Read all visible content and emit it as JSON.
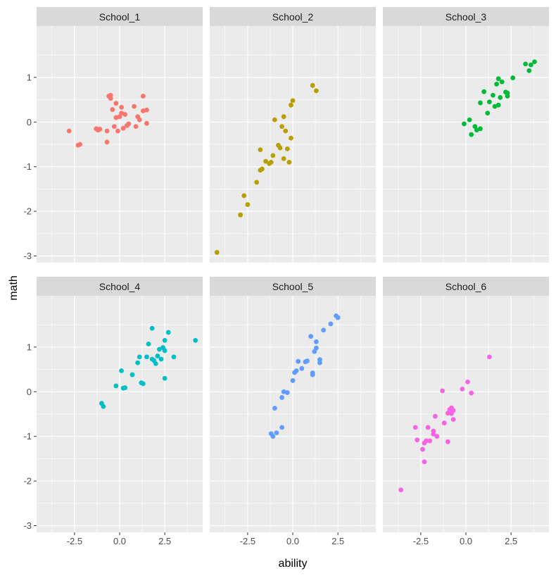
{
  "chart_data": {
    "type": "scatter",
    "facet_layout": "2x3",
    "xlabel": "ability",
    "ylabel": "math",
    "xlim": [
      -4.6,
      4.6
    ],
    "ylim": [
      -3.15,
      2.15
    ],
    "x_ticks": [
      -2.5,
      0,
      2.5
    ],
    "x_tick_labels": [
      "-2.5",
      "0.0",
      "2.5"
    ],
    "y_ticks": [
      -3,
      -2,
      -1,
      0,
      1
    ],
    "y_tick_labels": [
      "-3",
      "-2",
      "-1",
      "0",
      "1"
    ],
    "grid": true,
    "panel_background": "#ebebeb",
    "strip_background": "#d9d9d9",
    "grid_color": "#ffffff",
    "panels": [
      {
        "name": "School_1",
        "color": "#f8766d",
        "points": [
          [
            -2.8,
            -0.2
          ],
          [
            -2.3,
            -0.52
          ],
          [
            -2.2,
            -0.5
          ],
          [
            -1.3,
            -0.15
          ],
          [
            -1.2,
            -0.18
          ],
          [
            -1.1,
            -0.16
          ],
          [
            -0.7,
            -0.45
          ],
          [
            -0.7,
            -0.2
          ],
          [
            -0.6,
            0.58
          ],
          [
            -0.5,
            0.6
          ],
          [
            -0.5,
            0.53
          ],
          [
            -0.4,
            0.28
          ],
          [
            -0.3,
            -0.1
          ],
          [
            -0.2,
            0.1
          ],
          [
            -0.2,
            0.42
          ],
          [
            -0.1,
            -0.2
          ],
          [
            0.0,
            0.12
          ],
          [
            0.1,
            0.2
          ],
          [
            0.1,
            0.33
          ],
          [
            0.2,
            -0.14
          ],
          [
            0.3,
            0.17
          ],
          [
            0.4,
            -0.08
          ],
          [
            0.5,
            -0.04
          ],
          [
            0.8,
            0.35
          ],
          [
            0.9,
            -0.1
          ],
          [
            1.0,
            0.12
          ],
          [
            1.1,
            0.05
          ],
          [
            1.3,
            0.58
          ],
          [
            1.3,
            0.25
          ],
          [
            1.5,
            0.27
          ],
          [
            1.5,
            -0.03
          ]
        ]
      },
      {
        "name": "School_2",
        "color": "#b79f00",
        "points": [
          [
            -4.2,
            -2.92
          ],
          [
            -2.9,
            -2.08
          ],
          [
            -2.7,
            -1.65
          ],
          [
            -2.5,
            -1.85
          ],
          [
            -2.0,
            -1.35
          ],
          [
            -1.8,
            -1.08
          ],
          [
            -1.8,
            -0.62
          ],
          [
            -1.7,
            -1.05
          ],
          [
            -1.5,
            -0.88
          ],
          [
            -1.3,
            -0.93
          ],
          [
            -1.2,
            -0.9
          ],
          [
            -1.1,
            -0.75
          ],
          [
            -1.0,
            0.05
          ],
          [
            -0.8,
            -0.52
          ],
          [
            -0.7,
            -0.58
          ],
          [
            -0.6,
            -0.1
          ],
          [
            -0.5,
            0.12
          ],
          [
            -0.5,
            -0.82
          ],
          [
            -0.4,
            -0.2
          ],
          [
            -0.3,
            -0.6
          ],
          [
            -0.2,
            -0.9
          ],
          [
            -0.1,
            0.38
          ],
          [
            0.0,
            0.48
          ],
          [
            -0.1,
            -0.36
          ],
          [
            1.1,
            0.82
          ],
          [
            1.3,
            0.7
          ]
        ]
      },
      {
        "name": "School_3",
        "color": "#00ba38",
        "points": [
          [
            -0.1,
            -0.04
          ],
          [
            0.2,
            0.05
          ],
          [
            0.3,
            -0.28
          ],
          [
            0.5,
            -0.1
          ],
          [
            0.6,
            -0.18
          ],
          [
            0.8,
            -0.15
          ],
          [
            0.8,
            0.43
          ],
          [
            1.0,
            0.68
          ],
          [
            1.2,
            0.2
          ],
          [
            1.3,
            0.45
          ],
          [
            1.5,
            0.6
          ],
          [
            1.6,
            0.35
          ],
          [
            1.7,
            0.85
          ],
          [
            1.8,
            0.38
          ],
          [
            1.8,
            0.97
          ],
          [
            1.9,
            0.55
          ],
          [
            2.0,
            0.9
          ],
          [
            2.2,
            0.67
          ],
          [
            2.3,
            0.58
          ],
          [
            2.3,
            0.65
          ],
          [
            2.6,
            0.99
          ],
          [
            3.3,
            1.3
          ],
          [
            3.5,
            1.15
          ],
          [
            3.6,
            1.28
          ],
          [
            3.8,
            1.35
          ]
        ]
      },
      {
        "name": "School_4",
        "color": "#00bfc4",
        "points": [
          [
            -1.0,
            -0.26
          ],
          [
            -0.9,
            -0.33
          ],
          [
            -0.2,
            0.13
          ],
          [
            0.1,
            0.47
          ],
          [
            0.2,
            0.08
          ],
          [
            0.3,
            0.09
          ],
          [
            0.7,
            0.38
          ],
          [
            1.0,
            0.65
          ],
          [
            1.1,
            0.78
          ],
          [
            1.2,
            0.2
          ],
          [
            1.3,
            0.18
          ],
          [
            1.5,
            0.78
          ],
          [
            1.6,
            1.07
          ],
          [
            1.8,
            1.42
          ],
          [
            1.8,
            0.73
          ],
          [
            1.9,
            0.7
          ],
          [
            2.0,
            0.63
          ],
          [
            2.1,
            0.8
          ],
          [
            2.2,
            0.95
          ],
          [
            2.3,
            0.73
          ],
          [
            2.4,
            0.99
          ],
          [
            2.5,
            0.92
          ],
          [
            2.5,
            1.15
          ],
          [
            2.5,
            0.3
          ],
          [
            2.7,
            1.33
          ],
          [
            3.0,
            0.78
          ],
          [
            4.2,
            1.15
          ]
        ]
      },
      {
        "name": "School_5",
        "color": "#619cff",
        "points": [
          [
            -1.2,
            -0.94
          ],
          [
            -1.1,
            -1.0
          ],
          [
            -0.9,
            -0.92
          ],
          [
            -1.0,
            -0.37
          ],
          [
            -0.6,
            -0.8
          ],
          [
            -0.6,
            -0.13
          ],
          [
            -0.5,
            0.0
          ],
          [
            -0.3,
            -0.02
          ],
          [
            0.0,
            0.25
          ],
          [
            0.1,
            0.43
          ],
          [
            0.2,
            0.47
          ],
          [
            0.3,
            0.68
          ],
          [
            0.5,
            0.52
          ],
          [
            0.7,
            0.67
          ],
          [
            0.8,
            0.69
          ],
          [
            1.0,
            1.24
          ],
          [
            1.1,
            0.42
          ],
          [
            1.1,
            0.38
          ],
          [
            1.2,
            0.9
          ],
          [
            1.3,
            1.12
          ],
          [
            1.3,
            0.98
          ],
          [
            1.5,
            0.72
          ],
          [
            1.5,
            0.65
          ],
          [
            1.7,
            1.38
          ],
          [
            2.1,
            1.52
          ],
          [
            2.4,
            1.7
          ],
          [
            2.5,
            1.66
          ]
        ]
      },
      {
        "name": "School_6",
        "color": "#f564e3",
        "points": [
          [
            -3.6,
            -2.2
          ],
          [
            -2.8,
            -0.8
          ],
          [
            -2.7,
            -1.08
          ],
          [
            -2.4,
            -1.29
          ],
          [
            -2.3,
            -1.57
          ],
          [
            -2.3,
            -1.15
          ],
          [
            -2.2,
            -1.1
          ],
          [
            -2.1,
            -0.8
          ],
          [
            -2.0,
            -1.1
          ],
          [
            -1.8,
            -0.88
          ],
          [
            -1.8,
            -0.95
          ],
          [
            -1.7,
            -0.55
          ],
          [
            -1.6,
            -1.0
          ],
          [
            -1.3,
            0.02
          ],
          [
            -1.2,
            -0.7
          ],
          [
            -1.0,
            -1.12
          ],
          [
            -1.0,
            -0.48
          ],
          [
            -0.9,
            -0.4
          ],
          [
            -0.8,
            -0.36
          ],
          [
            -0.8,
            -0.49
          ],
          [
            -0.7,
            -0.62
          ],
          [
            -0.7,
            -0.42
          ],
          [
            -0.2,
            0.06
          ],
          [
            0.1,
            0.22
          ],
          [
            0.3,
            -0.03
          ],
          [
            1.3,
            0.78
          ]
        ]
      }
    ]
  }
}
